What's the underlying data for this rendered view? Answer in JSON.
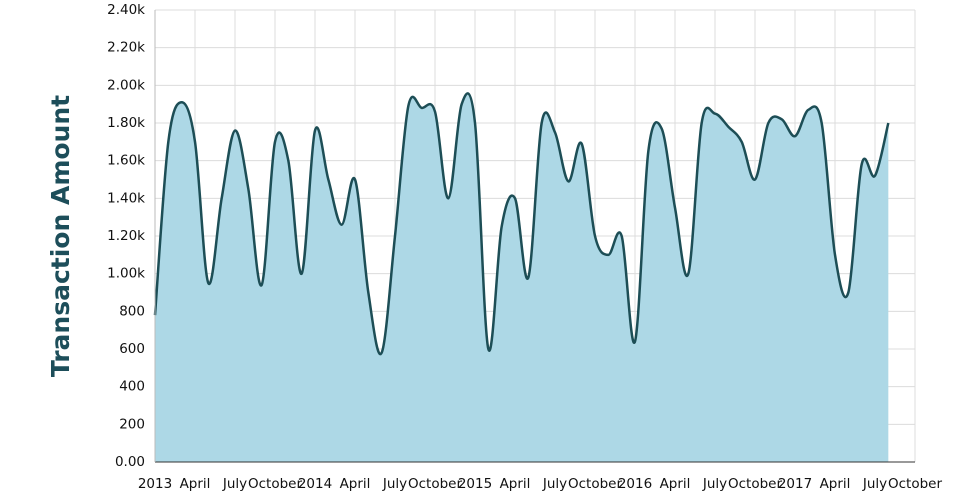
{
  "chart_data": {
    "type": "area",
    "y_label": "Transaction Amount",
    "x": [
      "2013-01",
      "2013-02",
      "2013-03",
      "2013-04",
      "2013-05",
      "2013-06",
      "2013-07",
      "2013-08",
      "2013-09",
      "2013-10",
      "2013-11",
      "2013-12",
      "2014-01",
      "2014-02",
      "2014-03",
      "2014-04",
      "2014-05",
      "2014-06",
      "2014-07",
      "2014-08",
      "2014-09",
      "2014-10",
      "2014-11",
      "2014-12",
      "2015-01",
      "2015-02",
      "2015-03",
      "2015-04",
      "2015-05",
      "2015-06",
      "2015-07",
      "2015-08",
      "2015-09",
      "2015-10",
      "2015-11",
      "2015-12",
      "2016-01",
      "2016-02",
      "2016-03",
      "2016-04",
      "2016-05",
      "2016-06",
      "2016-07",
      "2016-08",
      "2016-09",
      "2016-10",
      "2016-11",
      "2016-12",
      "2017-01",
      "2017-02",
      "2017-03",
      "2017-04",
      "2017-05",
      "2017-06",
      "2017-07",
      "2017-08"
    ],
    "values": [
      780,
      1700,
      1910,
      1700,
      950,
      1400,
      1760,
      1450,
      940,
      1700,
      1600,
      1000,
      1760,
      1500,
      1260,
      1500,
      900,
      580,
      1200,
      1890,
      1880,
      1860,
      1400,
      1900,
      1800,
      600,
      1250,
      1400,
      980,
      1800,
      1750,
      1490,
      1690,
      1200,
      1100,
      1200,
      640,
      1650,
      1770,
      1350,
      1000,
      1800,
      1850,
      1780,
      1700,
      1500,
      1800,
      1820,
      1730,
      1870,
      1800,
      1100,
      900,
      1580,
      1520,
      1800
    ],
    "color": "#add8e6",
    "line_color": "#1d4e56",
    "xlim": [
      "2013-01",
      "2017-10"
    ],
    "xticks": [
      {
        "value": "2013-01",
        "label": "2013"
      },
      {
        "value": "2013-04",
        "label": "April"
      },
      {
        "value": "2013-07",
        "label": "July"
      },
      {
        "value": "2013-10",
        "label": "October"
      },
      {
        "value": "2014-01",
        "label": "2014"
      },
      {
        "value": "2014-04",
        "label": "April"
      },
      {
        "value": "2014-07",
        "label": "July"
      },
      {
        "value": "2014-10",
        "label": "October"
      },
      {
        "value": "2015-01",
        "label": "2015"
      },
      {
        "value": "2015-04",
        "label": "April"
      },
      {
        "value": "2015-07",
        "label": "July"
      },
      {
        "value": "2015-10",
        "label": "October"
      },
      {
        "value": "2016-01",
        "label": "2016"
      },
      {
        "value": "2016-04",
        "label": "April"
      },
      {
        "value": "2016-07",
        "label": "July"
      },
      {
        "value": "2016-10",
        "label": "October"
      },
      {
        "value": "2017-01",
        "label": "2017"
      },
      {
        "value": "2017-04",
        "label": "April"
      },
      {
        "value": "2017-07",
        "label": "July"
      },
      {
        "value": "2017-10",
        "label": "October"
      }
    ],
    "ylim": [
      0,
      2400
    ],
    "yticks": [
      {
        "value": 0,
        "label": "0.00"
      },
      200,
      400,
      600,
      800,
      {
        "value": 1000,
        "label": "1.00k"
      },
      {
        "value": 1200,
        "label": "1.20k"
      },
      {
        "value": 1400,
        "label": "1.40k"
      },
      {
        "value": 1600,
        "label": "1.60k"
      },
      {
        "value": 1800,
        "label": "1.80k"
      },
      {
        "value": 2000,
        "label": "2.00k"
      },
      {
        "value": 2200,
        "label": "2.20k"
      },
      {
        "value": 2400,
        "label": "2.40k"
      }
    ],
    "grid": true
  }
}
